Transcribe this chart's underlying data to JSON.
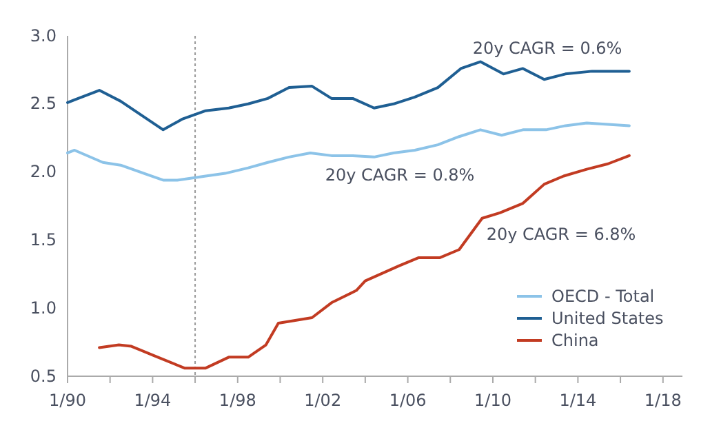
{
  "chart_data": {
    "type": "line",
    "xlim": [
      "1990-01",
      "2018-12"
    ],
    "ylim": [
      0.5,
      3.0
    ],
    "xticks": [
      {
        "value": "1990-01",
        "label": "1/90"
      },
      {
        "value": "1992-01",
        "label": null
      },
      {
        "value": "1994-01",
        "label": "1/94"
      },
      {
        "value": "1996-01",
        "label": null
      },
      {
        "value": "1998-01",
        "label": "1/98"
      },
      {
        "value": "2000-01",
        "label": null
      },
      {
        "value": "2002-01",
        "label": "1/02"
      },
      {
        "value": "2004-01",
        "label": null
      },
      {
        "value": "2006-01",
        "label": "1/06"
      },
      {
        "value": "2008-01",
        "label": null
      },
      {
        "value": "2010-01",
        "label": "1/10"
      },
      {
        "value": "2012-01",
        "label": null
      },
      {
        "value": "2014-01",
        "label": "1/14"
      },
      {
        "value": "2016-01",
        "label": null
      },
      {
        "value": "2018-01",
        "label": "1/18"
      }
    ],
    "yticks": [
      {
        "value": 0.5,
        "label": "0.5"
      },
      {
        "value": 1,
        "label": "1.0"
      },
      {
        "value": 1.5,
        "label": "1.5"
      },
      {
        "value": 2,
        "label": "2.0"
      },
      {
        "value": 2.5,
        "label": "2.5"
      },
      {
        "value": 3,
        "label": "3.0"
      }
    ],
    "grid": false,
    "legend": "bottom right",
    "line_style": "solid",
    "marker": "none",
    "ref_lines": [
      {
        "axis": "x",
        "value": "1996-01",
        "color": "#999999",
        "line_style": "dotted"
      }
    ],
    "annotations": [
      "20y CAGR = 0.6%",
      "20y CAGR = 0.8%",
      "20y CAGR = 6.8%"
    ],
    "series": [
      {
        "name": "OECD - Total",
        "color": "#8cc3e8",
        "x": [
          "1990-01",
          "1990-05",
          "1991-09",
          "1992-07",
          "1994-07",
          "1995-03",
          "1996-07",
          "1997-06",
          "1998-07",
          "1999-06",
          "2000-06",
          "2001-06",
          "2002-06",
          "2003-06",
          "2004-06",
          "2005-05",
          "2006-05",
          "2007-06",
          "2008-06",
          "2009-06",
          "2010-06",
          "2011-06",
          "2012-07",
          "2013-06",
          "2014-06",
          "2015-06",
          "2016-06"
        ],
        "values": [
          2.14,
          2.16,
          2.07,
          2.05,
          1.94,
          1.94,
          1.97,
          1.99,
          2.03,
          2.07,
          2.11,
          2.14,
          2.12,
          2.12,
          2.11,
          2.14,
          2.16,
          2.2,
          2.26,
          2.31,
          2.27,
          2.31,
          2.31,
          2.34,
          2.36,
          2.35,
          2.34
        ]
      },
      {
        "name": "United States",
        "color": "#1f5f93",
        "x": [
          "1990-01",
          "1990-05",
          "1991-07",
          "1992-07",
          "1994-07",
          "1995-06",
          "1996-07",
          "1997-08",
          "1998-07",
          "1999-06",
          "2000-06",
          "2001-07",
          "2002-06",
          "2003-06",
          "2004-06",
          "2005-05",
          "2006-05",
          "2007-06",
          "2008-07",
          "2009-06",
          "2010-07",
          "2011-06",
          "2012-06",
          "2013-06",
          "2014-09",
          "2016-06"
        ],
        "values": [
          2.51,
          2.53,
          2.6,
          2.52,
          2.31,
          2.39,
          2.45,
          2.47,
          2.5,
          2.54,
          2.62,
          2.63,
          2.54,
          2.54,
          2.47,
          2.5,
          2.55,
          2.62,
          2.76,
          2.81,
          2.72,
          2.76,
          2.68,
          2.72,
          2.74,
          2.74
        ]
      },
      {
        "name": "China",
        "color": "#c23b22",
        "x": [
          "1991-07",
          "1992-06",
          "1993-01",
          "1994-02",
          "1995-07",
          "1996-07",
          "1997-08",
          "1998-07",
          "1999-05",
          "1999-12",
          "2001-07",
          "2002-06",
          "2003-08",
          "2004-01",
          "2005-08",
          "2006-07",
          "2007-07",
          "2008-06",
          "2009-07",
          "2010-05",
          "2011-06",
          "2012-06",
          "2013-05",
          "2014-06",
          "2015-06",
          "2016-06"
        ],
        "values": [
          0.71,
          0.73,
          0.72,
          0.65,
          0.56,
          0.56,
          0.64,
          0.64,
          0.73,
          0.89,
          0.93,
          1.04,
          1.13,
          1.2,
          1.31,
          1.37,
          1.37,
          1.43,
          1.66,
          1.7,
          1.77,
          1.91,
          1.97,
          2.02,
          2.06,
          2.12
        ]
      }
    ]
  }
}
